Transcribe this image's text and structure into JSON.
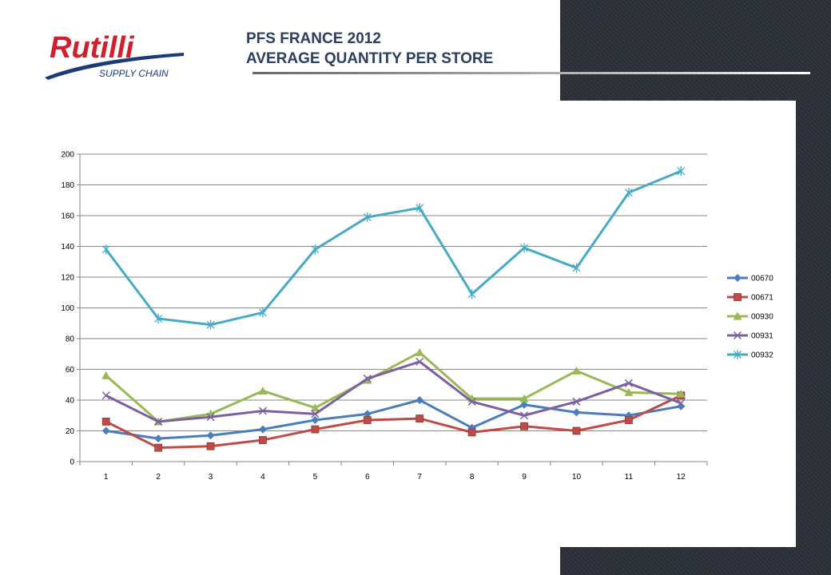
{
  "slide": {
    "title_line1": "PFS FRANCE 2012",
    "title_line2": "AVERAGE QUANTITY PER STORE"
  },
  "logo": {
    "brand": "Rutilli",
    "tagline": "SUPPLY CHAIN",
    "colors": {
      "red": "#d0202e",
      "navy": "#1b3a7a"
    }
  },
  "chart_data": {
    "type": "line",
    "title": "",
    "xlabel": "",
    "ylabel": "",
    "categories": [
      "1",
      "2",
      "3",
      "4",
      "5",
      "6",
      "7",
      "8",
      "9",
      "10",
      "11",
      "12"
    ],
    "ylim": [
      0,
      200
    ],
    "yticks": [
      0,
      20,
      40,
      60,
      80,
      100,
      120,
      140,
      160,
      180,
      200
    ],
    "grid": true,
    "legend": "right",
    "series": [
      {
        "name": "00670",
        "color": "#4a7ebb",
        "marker": "diamond",
        "values": [
          20,
          15,
          17,
          21,
          27,
          31,
          40,
          22,
          37,
          32,
          30,
          36
        ]
      },
      {
        "name": "00671",
        "color": "#be4b48",
        "marker": "square",
        "values": [
          26,
          9,
          10,
          14,
          21,
          27,
          28,
          19,
          23,
          20,
          27,
          43
        ]
      },
      {
        "name": "00930",
        "color": "#98b954",
        "marker": "triangle",
        "values": [
          56,
          26,
          31,
          46,
          35,
          53,
          71,
          41,
          41,
          59,
          45,
          44
        ]
      },
      {
        "name": "00931",
        "color": "#7d60a0",
        "marker": "x",
        "values": [
          43,
          26,
          29,
          33,
          31,
          54,
          65,
          39,
          30,
          39,
          51,
          38
        ]
      },
      {
        "name": "00932",
        "color": "#46aac5",
        "marker": "star",
        "values": [
          138,
          93,
          89,
          97,
          138,
          159,
          165,
          109,
          139,
          126,
          175,
          189
        ]
      }
    ]
  }
}
